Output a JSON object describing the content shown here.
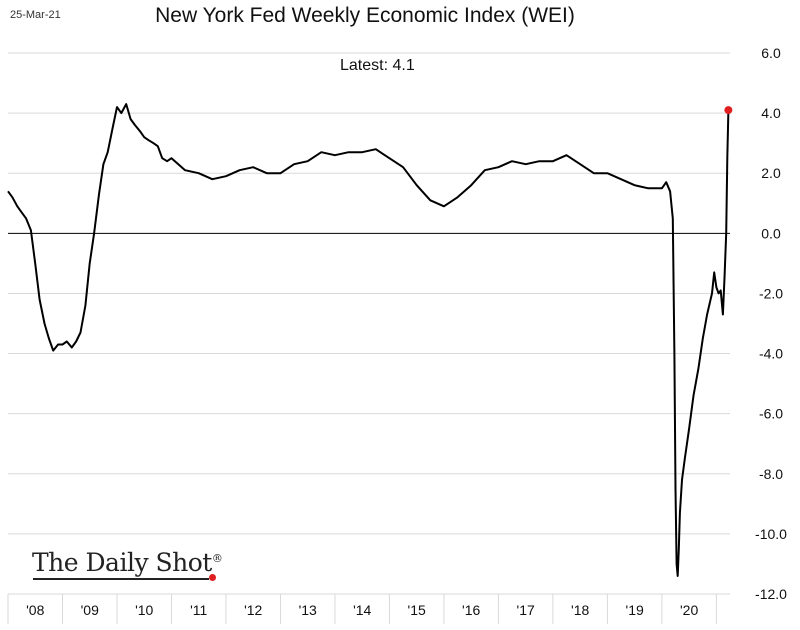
{
  "header": {
    "date": "25-Mar-21",
    "latest_label": "Latest:  4.1"
  },
  "logo": {
    "text": "The Daily Shot",
    "mark": "®"
  },
  "colors": {
    "line": "#000000",
    "latest_marker": "#e02020",
    "grid": "#d9d9d9",
    "zero_line": "#000000"
  },
  "chart_data": {
    "type": "line",
    "title": "New York Fed Weekly Economic Index (WEI)",
    "xlabel": "",
    "ylabel": "",
    "ylim": [
      -12,
      6
    ],
    "xlim": [
      2008.0,
      2021.25
    ],
    "y_ticks": [
      "6.0",
      "4.0",
      "2.0",
      "0.0",
      "-2.0",
      "-4.0",
      "-6.0",
      "-8.0",
      "-10.0",
      "-12.0"
    ],
    "y_axis_position": "right",
    "x_ticks": [
      "'08",
      "'09",
      "'10",
      "'11",
      "'12",
      "'13",
      "'14",
      "'15",
      "'16",
      "'17",
      "'18",
      "'19",
      "'20"
    ],
    "grid": true,
    "latest_value": 4.1,
    "series": [
      {
        "x": [
          2008.0,
          2008.08,
          2008.17,
          2008.25,
          2008.33,
          2008.42,
          2008.5,
          2008.58,
          2008.67,
          2008.75,
          2008.83,
          2008.92,
          2009.0,
          2009.08,
          2009.17,
          2009.25,
          2009.33,
          2009.42,
          2009.5,
          2009.58,
          2009.67,
          2009.75,
          2009.83,
          2009.92,
          2010.0,
          2010.08,
          2010.17,
          2010.25,
          2010.33,
          2010.42,
          2010.5,
          2010.58,
          2010.67,
          2010.75,
          2010.83,
          2010.92,
          2011.0,
          2011.25,
          2011.5,
          2011.75,
          2012.0,
          2012.25,
          2012.5,
          2012.75,
          2013.0,
          2013.25,
          2013.5,
          2013.75,
          2014.0,
          2014.25,
          2014.5,
          2014.75,
          2015.0,
          2015.25,
          2015.5,
          2015.75,
          2016.0,
          2016.25,
          2016.5,
          2016.75,
          2017.0,
          2017.25,
          2017.5,
          2017.75,
          2018.0,
          2018.25,
          2018.5,
          2018.75,
          2019.0,
          2019.25,
          2019.5,
          2019.75,
          2020.0,
          2020.08,
          2020.15,
          2020.2,
          2020.23,
          2020.25,
          2020.27,
          2020.29,
          2020.31,
          2020.33,
          2020.37,
          2020.42,
          2020.5,
          2020.58,
          2020.67,
          2020.75,
          2020.83,
          2020.92,
          2020.96,
          2021.0,
          2021.04,
          2021.08,
          2021.12,
          2021.15,
          2021.18,
          2021.2,
          2021.22
        ],
        "values": [
          1.4,
          1.2,
          0.9,
          0.7,
          0.5,
          0.1,
          -1.0,
          -2.2,
          -3.0,
          -3.5,
          -3.9,
          -3.7,
          -3.7,
          -3.6,
          -3.8,
          -3.6,
          -3.3,
          -2.4,
          -1.0,
          0.0,
          1.3,
          2.3,
          2.7,
          3.5,
          4.2,
          4.0,
          4.3,
          3.8,
          3.6,
          3.4,
          3.2,
          3.1,
          3.0,
          2.9,
          2.5,
          2.4,
          2.5,
          2.1,
          2.0,
          1.8,
          1.9,
          2.1,
          2.2,
          2.0,
          2.0,
          2.3,
          2.4,
          2.7,
          2.6,
          2.7,
          2.7,
          2.8,
          2.5,
          2.2,
          1.6,
          1.1,
          0.9,
          1.2,
          1.6,
          2.1,
          2.2,
          2.4,
          2.3,
          2.4,
          2.4,
          2.6,
          2.3,
          2.0,
          2.0,
          1.8,
          1.6,
          1.5,
          1.5,
          1.7,
          1.4,
          0.5,
          -4.0,
          -8.5,
          -11.0,
          -11.4,
          -10.5,
          -9.3,
          -8.2,
          -7.5,
          -6.5,
          -5.4,
          -4.5,
          -3.5,
          -2.7,
          -2.0,
          -1.3,
          -1.8,
          -2.0,
          -1.9,
          -2.7,
          -1.4,
          0.0,
          2.5,
          4.1
        ]
      }
    ]
  }
}
